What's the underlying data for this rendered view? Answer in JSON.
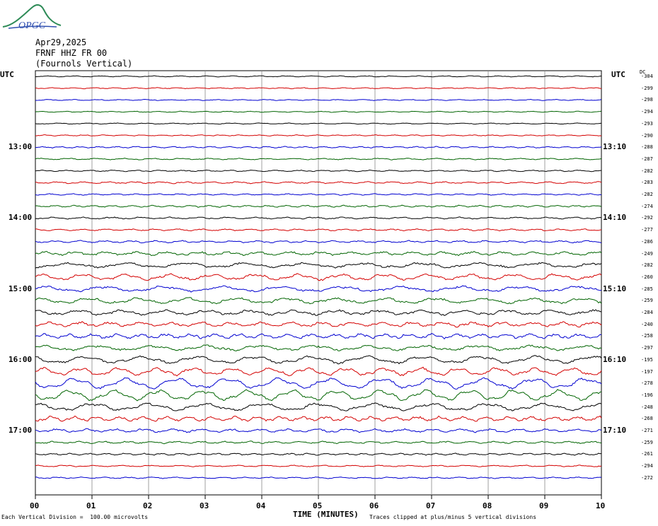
{
  "logo": {
    "text": "OPGC"
  },
  "header": {
    "date": "Apr29,2025",
    "station": "FRNF HHZ FR 00",
    "location": "(Fournols Vertical)"
  },
  "axis": {
    "left_title": "UTC",
    "right_title": "UTC",
    "dc_label": "DC",
    "left_hours": [
      "13:00",
      "14:00",
      "15:00",
      "16:00",
      "17:00"
    ],
    "right_hours": [
      "13:10",
      "14:10",
      "15:10",
      "16:10",
      "17:10"
    ],
    "x_ticks": [
      "00",
      "01",
      "02",
      "03",
      "04",
      "05",
      "06",
      "07",
      "08",
      "09",
      "10"
    ],
    "x_title": "TIME (MINUTES)"
  },
  "footer": {
    "scale_note": "Each Vertical Division =  100.00 microvolts",
    "clip_note": "Traces clipped at plus/minus 5 vertical divisions"
  },
  "chart_data": {
    "type": "line",
    "title": "FRNF HHZ FR 00 (Fournols Vertical)",
    "xlabel": "TIME (MINUTES)",
    "ylabel": "UTC",
    "xlim": [
      0,
      10
    ],
    "trace_colors": [
      "#000000",
      "#d40000",
      "#0000d0",
      "#006400"
    ],
    "dc_offsets": [
      -304,
      -299,
      -298,
      -294,
      -293,
      -290,
      -288,
      -287,
      -282,
      -283,
      -282,
      -274,
      -292,
      -277,
      -286,
      -249,
      -282,
      -260,
      -285,
      -259,
      -284,
      -240,
      -258,
      -297,
      -195,
      -197,
      -278,
      -196,
      -248,
      -268,
      -271,
      -259,
      -261,
      -294,
      -272
    ],
    "trace_amplitude_divisions": [
      0.3,
      0.3,
      0.3,
      0.3,
      0.3,
      0.3,
      0.4,
      0.4,
      0.4,
      0.5,
      0.4,
      0.5,
      0.5,
      0.5,
      0.6,
      1,
      1.4,
      1.8,
      1.6,
      1.6,
      1.4,
      1.3,
      1.3,
      1.5,
      2.2,
      2.3,
      3.2,
      3.2,
      2.2,
      1.3,
      0.9,
      0.6,
      0.5,
      0.4,
      0.4
    ],
    "grid": true
  }
}
